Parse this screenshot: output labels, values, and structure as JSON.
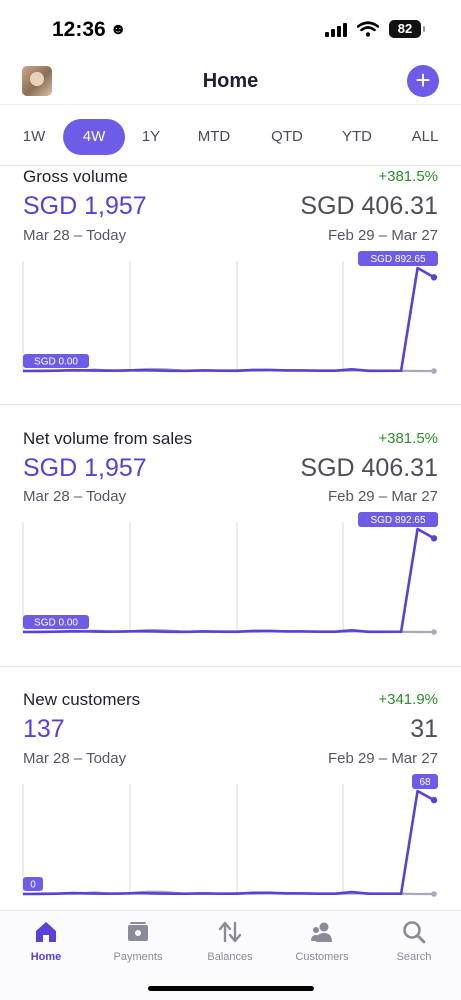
{
  "status_bar": {
    "time": "12:36",
    "emoji": "☻",
    "battery": "82"
  },
  "header": {
    "title": "Home",
    "add_label": "+"
  },
  "tabs": [
    {
      "label": "1W"
    },
    {
      "label": "4W",
      "active": true
    },
    {
      "label": "1Y"
    },
    {
      "label": "MTD"
    },
    {
      "label": "QTD"
    },
    {
      "label": "YTD"
    },
    {
      "label": "ALL"
    }
  ],
  "metrics": [
    {
      "label": "Gross volume",
      "change": "+381.5%",
      "value": "SGD 1,957",
      "prev_value": "SGD 406.31",
      "range": "Mar 28 – Today",
      "prev_range": "Feb 29 – Mar 27",
      "chart_data": {
        "type": "line",
        "min_label": "SGD 0.00",
        "max_label": "SGD 892.65",
        "series": [
          {
            "values": [
              0,
              5,
              3,
              2,
              12,
              3,
              6,
              18,
              14,
              2,
              6,
              4,
              6,
              3,
              8,
              7,
              4,
              4,
              3,
              6,
              3,
              2,
              0,
              0
            ]
          },
          {
            "values": [
              0,
              0,
              3,
              7,
              5,
              3,
              4,
              7,
              5,
              2,
              2,
              5,
              3,
              2,
              9,
              9,
              5,
              5,
              3,
              3,
              15,
              2,
              2,
              3,
              892.65,
              812
            ]
          }
        ]
      }
    },
    {
      "label": "Net volume from sales",
      "change": "+381.5%",
      "value": "SGD 1,957",
      "prev_value": "SGD 406.31",
      "range": "Mar 28 – Today",
      "prev_range": "Feb 29 – Mar 27",
      "chart_data": {
        "type": "line",
        "min_label": "SGD 0.00",
        "max_label": "SGD 892.65",
        "series": [
          {
            "values": [
              0,
              5,
              3,
              2,
              12,
              3,
              6,
              18,
              14,
              2,
              6,
              4,
              6,
              3,
              8,
              7,
              4,
              4,
              3,
              6,
              3,
              2,
              0,
              0
            ]
          },
          {
            "values": [
              0,
              0,
              3,
              7,
              5,
              3,
              4,
              7,
              5,
              2,
              2,
              5,
              3,
              2,
              9,
              9,
              5,
              5,
              3,
              3,
              15,
              2,
              2,
              3,
              892.65,
              812
            ]
          }
        ]
      }
    },
    {
      "label": "New customers",
      "change": "+341.9%",
      "value": "137",
      "prev_value": "31",
      "range": "Mar 28 – Today",
      "prev_range": "Feb 29 – Mar 27",
      "chart_data": {
        "type": "line",
        "min_label": "0",
        "max_label": "68",
        "series": [
          {
            "values": [
              0,
              0.4,
              0.3,
              0.2,
              1.1,
              0.2,
              0.5,
              1.6,
              1.3,
              0.2,
              0.5,
              0.3,
              0.5,
              0.2,
              0.7,
              0.6,
              0.3,
              0.3,
              0.2,
              0.5,
              0.2,
              0.2,
              0,
              0
            ]
          },
          {
            "values": [
              0,
              0,
              0.2,
              0.6,
              0.4,
              0.2,
              0.3,
              0.6,
              0.4,
              0.2,
              0.2,
              0.4,
              0.2,
              0.2,
              0.8,
              0.8,
              0.4,
              0.4,
              0.2,
              0.2,
              1.3,
              0.2,
              0.2,
              0.2,
              68,
              62
            ]
          }
        ]
      }
    }
  ],
  "bottom_nav": [
    {
      "label": "Home",
      "icon": "home-icon",
      "active": true
    },
    {
      "label": "Payments",
      "icon": "payments-icon"
    },
    {
      "label": "Balances",
      "icon": "balances-icon"
    },
    {
      "label": "Customers",
      "icon": "customers-icon"
    },
    {
      "label": "Search",
      "icon": "search-icon"
    }
  ],
  "colors": {
    "accent": "#6c5ce7",
    "value": "#5b3fd6",
    "positive": "#2e8b2e",
    "previous_line": "#a8a8b8"
  }
}
